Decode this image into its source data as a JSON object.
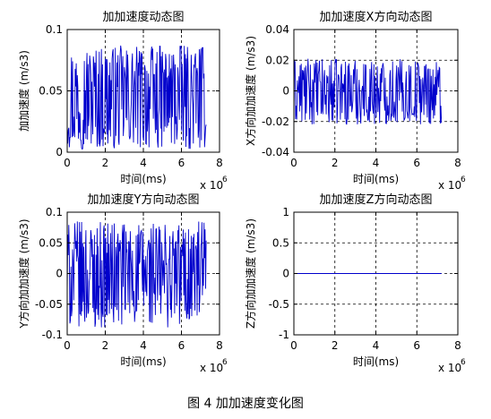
{
  "caption": "图 4  加加速度变化图",
  "charts": [
    {
      "title": "加加速度动态图",
      "xlabel": "时间(ms)",
      "ylabel": "加加速度 (m/s3)",
      "x_multiplier": "x 10",
      "x_multiplier_exp": "6"
    },
    {
      "title": "加加速度X方向动态图",
      "xlabel": "时间(ms)",
      "ylabel": "X方向加加速度 (m/s3)",
      "x_multiplier": "x 10",
      "x_multiplier_exp": "6"
    },
    {
      "title": "加加速度Y方向动态图",
      "xlabel": "时间(ms)",
      "ylabel": "Y方向加加速度 (m/s3)",
      "x_multiplier": "x 10",
      "x_multiplier_exp": "6"
    },
    {
      "title": "加加速度Z方向动态图",
      "xlabel": "时间(ms)",
      "ylabel": "Z方向加加速度 (m/s3)",
      "x_multiplier": "x 10",
      "x_multiplier_exp": "6"
    }
  ],
  "chart_data": [
    {
      "type": "line",
      "xlim": [
        0,
        8
      ],
      "ylim": [
        0,
        0.1
      ],
      "xticks": [
        "0",
        "2",
        "4",
        "6",
        "8"
      ],
      "yticks": [
        "0",
        "0.05",
        "0.1"
      ],
      "grid": true,
      "color": "#0000cc",
      "series": [
        {
          "x_range": [
            0,
            7.3
          ],
          "amplitude_range": [
            0.002,
            0.087
          ],
          "pattern": "dense oscillation"
        }
      ]
    },
    {
      "type": "line",
      "xlim": [
        0,
        8
      ],
      "ylim": [
        -0.04,
        0.04
      ],
      "xticks": [
        "0",
        "2",
        "4",
        "6",
        "8"
      ],
      "yticks": [
        "-0.04",
        "-0.02",
        "0",
        "0.02",
        "0.04"
      ],
      "grid": true,
      "color": "#0000cc",
      "series": [
        {
          "x_range": [
            0,
            7.2
          ],
          "amplitude_range": [
            -0.022,
            0.021
          ],
          "pattern": "dense oscillation"
        }
      ]
    },
    {
      "type": "line",
      "xlim": [
        0,
        8
      ],
      "ylim": [
        -0.1,
        0.1
      ],
      "xticks": [
        "0",
        "2",
        "4",
        "6",
        "8"
      ],
      "yticks": [
        "-0.1",
        "-0.05",
        "0",
        "0.05",
        "0.1"
      ],
      "grid": true,
      "color": "#0000cc",
      "series": [
        {
          "x_range": [
            0,
            7.3
          ],
          "amplitude_range": [
            -0.088,
            0.085
          ],
          "pattern": "dense oscillation"
        }
      ]
    },
    {
      "type": "line",
      "xlim": [
        0,
        8
      ],
      "ylim": [
        -1,
        1
      ],
      "xticks": [
        "0",
        "2",
        "4",
        "6",
        "8"
      ],
      "yticks": [
        "-1",
        "-0.5",
        "0",
        "0.5",
        "1"
      ],
      "grid": true,
      "color": "#0000cc",
      "series": [
        {
          "x": [
            0,
            7.2
          ],
          "y": [
            0,
            0
          ]
        }
      ]
    }
  ]
}
